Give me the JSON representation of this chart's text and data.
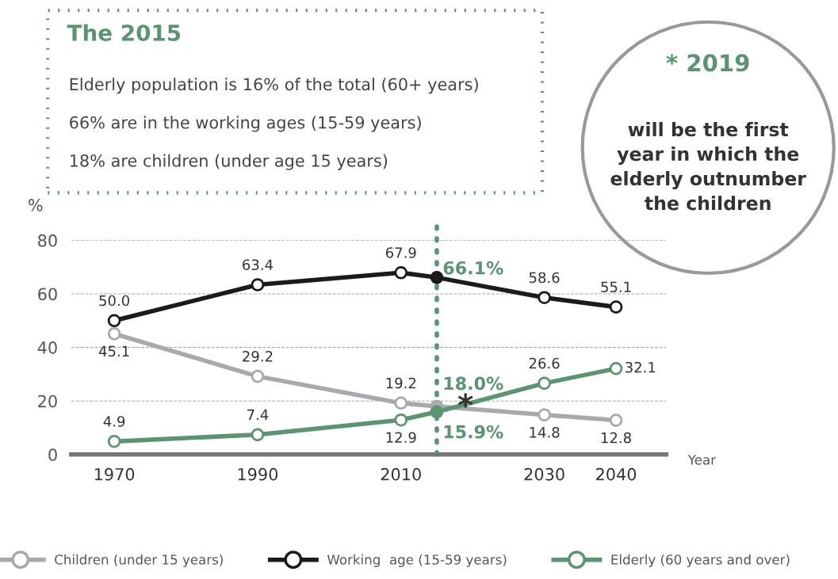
{
  "chart_data": {
    "type": "line",
    "title": "The 2015",
    "x": [
      1970,
      1990,
      2010,
      2015,
      2030,
      2040
    ],
    "series": [
      {
        "name": "Children (under 15 years)",
        "color": "#a9a8ad",
        "values": [
          45.1,
          29.2,
          19.2,
          18.0,
          14.8,
          12.8
        ],
        "value_labels": [
          "45.1",
          "29.2",
          "19.2",
          "18.0%",
          "14.8",
          "12.8"
        ]
      },
      {
        "name": "Working  age (15-59 years)",
        "color": "#1b1a1c",
        "values": [
          50.0,
          63.4,
          67.9,
          66.1,
          58.6,
          55.1
        ],
        "value_labels": [
          "50.0",
          "63.4",
          "67.9",
          "66.1%",
          "58.6",
          "55.1"
        ]
      },
      {
        "name": "Elderly (60 years and over)",
        "color": "#5a9471",
        "values": [
          4.9,
          7.4,
          12.9,
          15.9,
          26.6,
          32.1
        ],
        "value_labels": [
          "4.9",
          "7.4",
          "12.9",
          "15.9%",
          "26.6",
          "32.1"
        ]
      }
    ],
    "xlabel": "Year",
    "ylabel": "%",
    "xlim": [
      1964,
      2047
    ],
    "xticks": [
      1970,
      1990,
      2010,
      2030,
      2040
    ],
    "ylim": [
      0,
      80
    ],
    "yticks": [
      0,
      20,
      40,
      60,
      80
    ],
    "ref_lines": [
      {
        "axis": "x",
        "value": 2015,
        "color": "#5a9471",
        "line_style": "dotted"
      }
    ],
    "grid": "y",
    "legend": "bottom",
    "marker": "circle",
    "line_style": "solid",
    "annotations": [
      "Elderly population is 16% of the total (60+ years)",
      "66% are in the working ages (15-59 years)",
      "18% are children (under age 15 years)",
      "* 2019",
      "will be the first\nyear in which the\nelderly outnumber\nthe children",
      {
        "text": "*",
        "x": 2019,
        "y": 17.5
      }
    ]
  }
}
